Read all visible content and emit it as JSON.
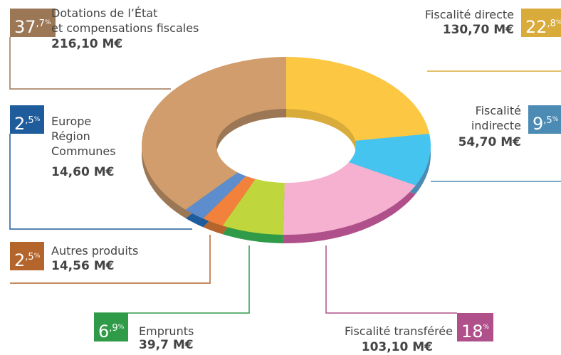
{
  "chart_data": {
    "type": "donut",
    "categories": [
      "Fiscalité directe",
      "Fiscalité\nindirecte",
      "Fiscalité transférée",
      "Emprunts",
      "Autres produits",
      "Europe\nRégion\nCommunes",
      "Dotations de l’État\net compensations fiscales"
    ],
    "values": [
      22.8,
      9.5,
      18,
      6.9,
      2.5,
      2.5,
      37.7
    ],
    "value_labels": [
      "22,8%",
      "9,5%",
      "18%",
      "6,9%",
      "2,5%",
      "2,5%",
      "37,7%"
    ],
    "amounts": [
      "130,70 M€",
      "54,70 M€",
      "103,10 M€",
      "39,7 M€",
      "14,56 M€",
      "14,60 M€",
      "216,10 M€"
    ],
    "colors": [
      "#fcc843",
      "#46c4f0",
      "#f6b1d0",
      "#bfd73c",
      "#f2813c",
      "#5d8dcc",
      "#d19d6c"
    ],
    "badge_colors": [
      "#d8ab3b",
      "#4b8bb4",
      "#b0508a",
      "#2f9a48",
      "#b4652b",
      "#1f5c9b",
      "#9b7755"
    ]
  }
}
